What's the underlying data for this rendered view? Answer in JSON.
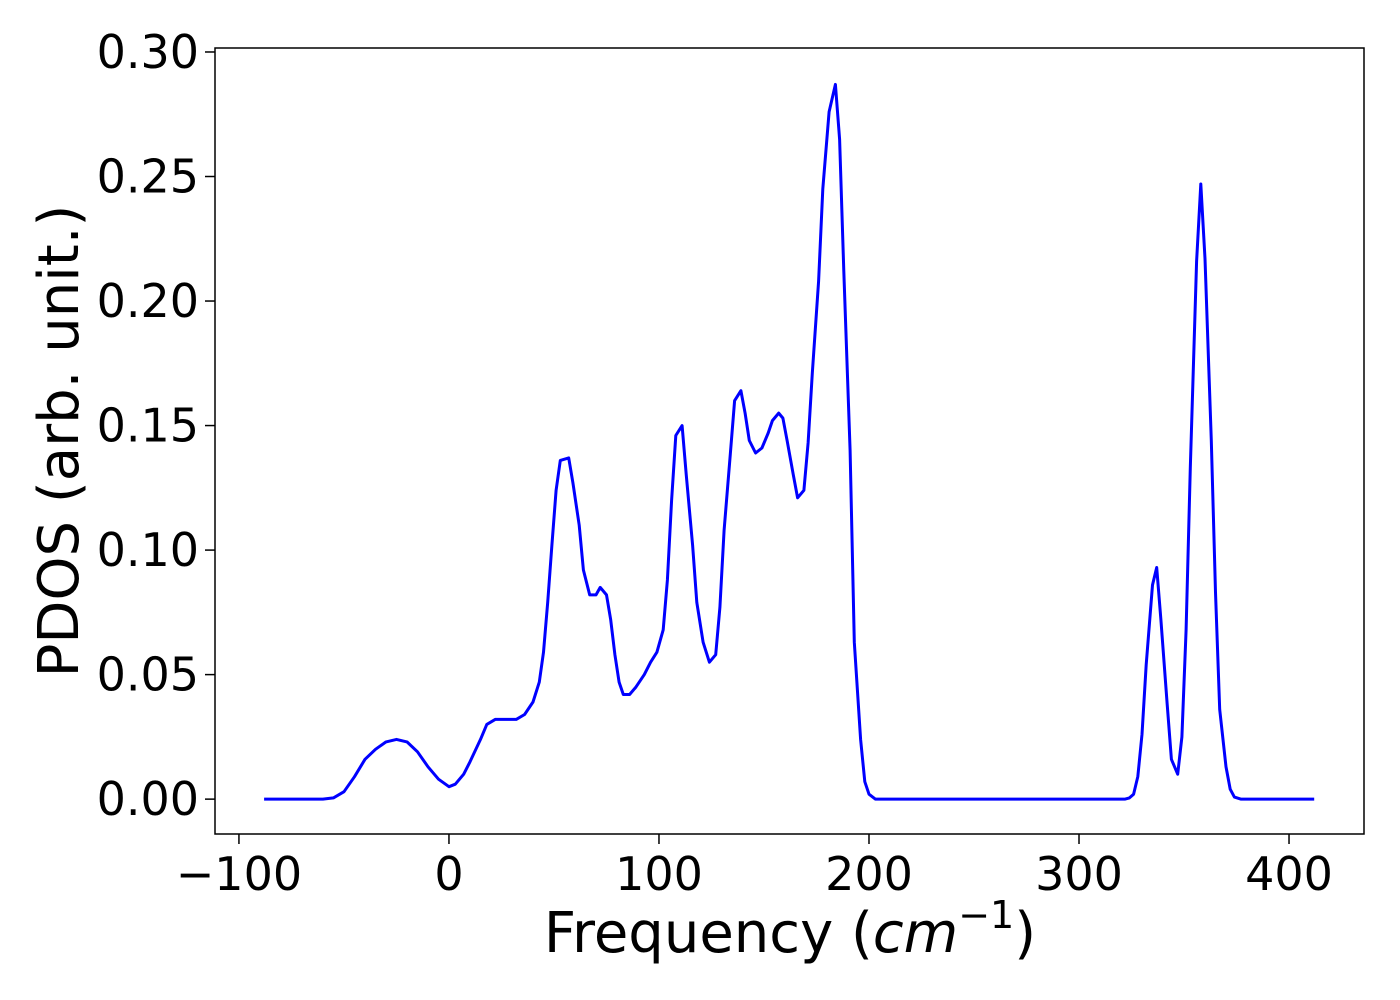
{
  "chart_data": {
    "type": "line",
    "xlabel": [
      "Frequency (",
      "cm",
      "−1",
      ")"
    ],
    "ylabel": "PDOS (arb. unit.)",
    "xlim": [
      -111.4,
      435.7
    ],
    "ylim": [
      -0.014,
      0.3016
    ],
    "xticks": [
      {
        "value": -100,
        "label": "−100"
      },
      0,
      100,
      200,
      300,
      400
    ],
    "yticks": [
      {
        "value": 0,
        "label": "0.00"
      },
      {
        "value": 0.05,
        "label": "0.05"
      },
      {
        "value": 0.1,
        "label": "0.10"
      },
      {
        "value": 0.15,
        "label": "0.15"
      },
      {
        "value": 0.2,
        "label": "0.20"
      },
      {
        "value": 0.25,
        "label": "0.25"
      },
      {
        "value": 0.3,
        "label": "0.30"
      }
    ],
    "grid": false,
    "series": [
      {
        "color": "#0000ff",
        "x": [
          -88,
          -60,
          -55,
          -50,
          -45,
          -40,
          -35,
          -30,
          -25,
          -20,
          -15,
          -10,
          -5,
          0,
          3,
          7,
          10,
          15,
          18,
          22,
          27,
          32,
          36,
          40,
          43,
          45,
          47,
          49,
          51,
          53,
          57,
          59,
          62,
          64,
          67,
          70,
          72,
          75,
          77,
          79,
          81,
          83,
          86,
          89,
          93,
          96,
          99,
          102,
          104,
          106,
          108,
          111,
          113,
          116,
          118,
          121,
          124,
          127,
          129,
          131,
          134,
          136,
          139,
          141,
          143,
          146,
          149,
          152,
          154,
          157,
          159,
          161,
          164,
          166,
          169,
          171,
          173,
          176,
          178,
          181,
          184,
          186,
          188,
          191,
          193,
          196,
          198,
          200,
          203,
          260,
          322,
          324,
          326,
          328,
          330,
          332,
          335,
          337,
          339,
          342,
          344,
          347,
          349,
          351,
          353,
          356,
          358,
          360,
          363,
          365,
          367,
          370,
          372,
          374,
          377,
          412
        ],
        "values": [
          0,
          0,
          0.0005,
          0.003,
          0.009,
          0.016,
          0.02,
          0.023,
          0.024,
          0.023,
          0.019,
          0.013,
          0.008,
          0.005,
          0.006,
          0.01,
          0.015,
          0.024,
          0.03,
          0.032,
          0.032,
          0.032,
          0.034,
          0.039,
          0.047,
          0.059,
          0.079,
          0.102,
          0.124,
          0.136,
          0.137,
          0.127,
          0.11,
          0.092,
          0.082,
          0.082,
          0.085,
          0.082,
          0.072,
          0.058,
          0.047,
          0.042,
          0.042,
          0.045,
          0.05,
          0.055,
          0.059,
          0.068,
          0.088,
          0.12,
          0.146,
          0.15,
          0.13,
          0.102,
          0.079,
          0.063,
          0.055,
          0.058,
          0.077,
          0.108,
          0.139,
          0.16,
          0.164,
          0.155,
          0.144,
          0.139,
          0.141,
          0.147,
          0.152,
          0.155,
          0.153,
          0.144,
          0.13,
          0.121,
          0.124,
          0.143,
          0.171,
          0.208,
          0.245,
          0.276,
          0.287,
          0.265,
          0.212,
          0.14,
          0.063,
          0.024,
          0.007,
          0.002,
          0,
          0,
          0,
          0.0005,
          0.002,
          0.009,
          0.026,
          0.054,
          0.086,
          0.093,
          0.072,
          0.038,
          0.016,
          0.01,
          0.025,
          0.068,
          0.133,
          0.216,
          0.247,
          0.217,
          0.144,
          0.083,
          0.036,
          0.013,
          0.004,
          0.0008,
          0,
          0
        ]
      }
    ]
  }
}
